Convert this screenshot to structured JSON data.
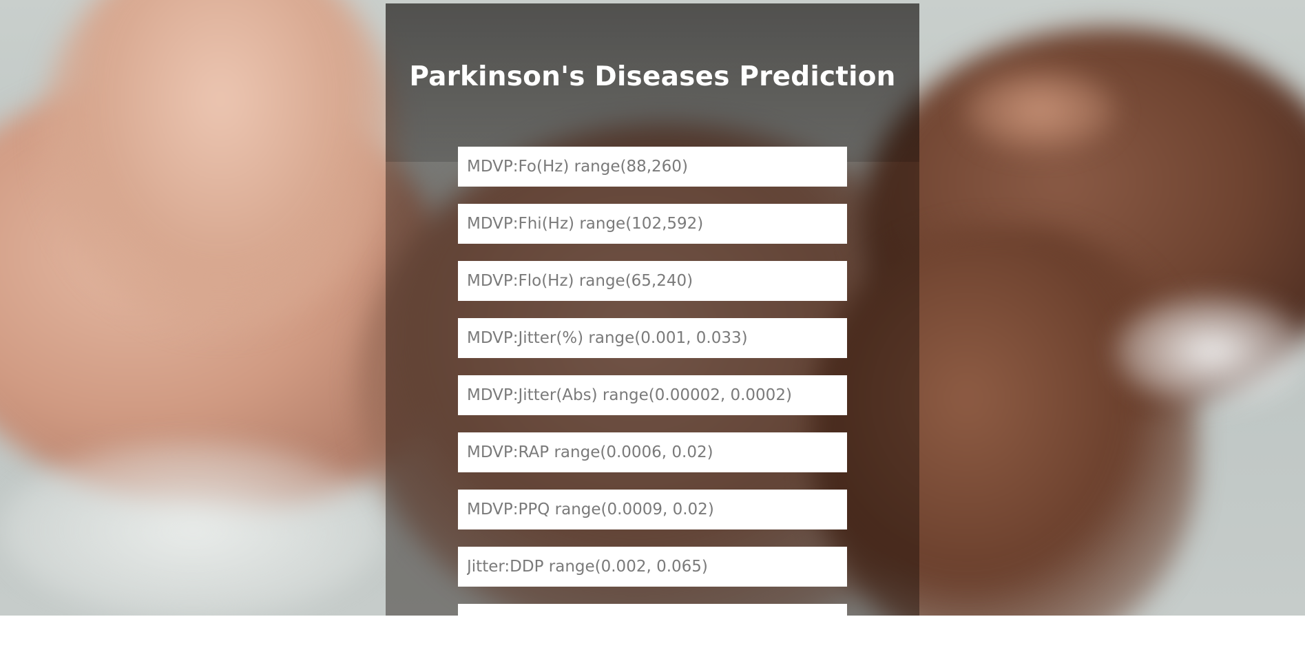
{
  "page": {
    "title": "Parkinson's Diseases Prediction"
  },
  "form": {
    "fields": [
      {
        "placeholder": "MDVP:Fo(Hz) range(88,260)"
      },
      {
        "placeholder": "MDVP:Fhi(Hz) range(102,592)"
      },
      {
        "placeholder": "MDVP:Flo(Hz) range(65,240)"
      },
      {
        "placeholder": "MDVP:Jitter(%) range(0.001, 0.033)"
      },
      {
        "placeholder": "MDVP:Jitter(Abs) range(0.00002, 0.0002)"
      },
      {
        "placeholder": "MDVP:RAP range(0.0006, 0.02)"
      },
      {
        "placeholder": "MDVP:PPQ range(0.0009, 0.02)"
      },
      {
        "placeholder": "Jitter:DDP range(0.002, 0.065)"
      },
      {
        "placeholder": ""
      }
    ]
  }
}
